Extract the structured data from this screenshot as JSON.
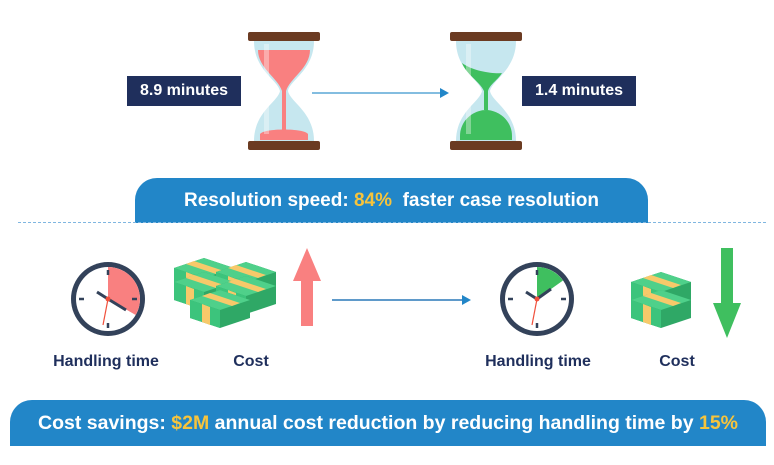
{
  "speed": {
    "before_label": "8.9 minutes",
    "after_label": "1.4 minutes",
    "banner_prefix": "Resolution speed:",
    "banner_highlight": "84%",
    "banner_suffix": "faster case resolution"
  },
  "cost": {
    "before_time_label": "Handling time",
    "before_cost_label": "Cost",
    "after_time_label": "Handling time",
    "after_cost_label": "Cost",
    "banner_prefix": "Cost savings:",
    "banner_highlight1": "$2M",
    "banner_middle": "annual cost reduction by reducing handling time by",
    "banner_highlight2": "15%"
  },
  "colors": {
    "navy": "#1f2f5c",
    "blue": "#2286c8",
    "highlight": "#f7c43c",
    "red": "#f98080",
    "green": "#3fbf5f"
  }
}
